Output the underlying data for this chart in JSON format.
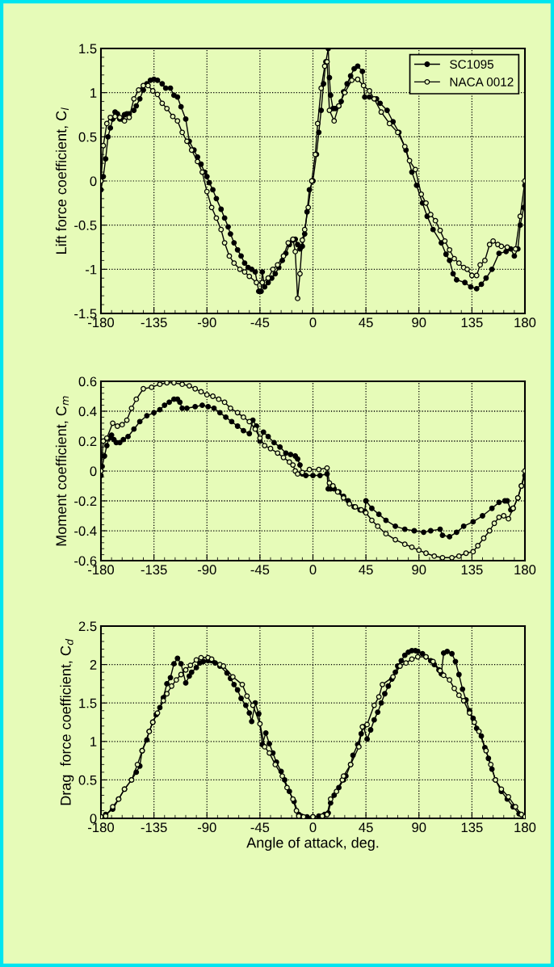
{
  "chart_data": [
    {
      "type": "line",
      "ylabel": "Lift force coefficient, C$_{l}$",
      "xlim": [
        -180,
        180
      ],
      "xticks": [
        -180,
        -135,
        -90,
        -45,
        0,
        45,
        90,
        135,
        180
      ],
      "ylim": [
        -1.5,
        1.5
      ],
      "yticks": [
        -1.5,
        -1,
        -0.5,
        0,
        0.5,
        1,
        1.5
      ],
      "grid": true,
      "legend": "top right",
      "marker": "circle",
      "line_style": "solid",
      "series": [
        {
          "name": "SC1095",
          "color": "#000000",
          "x": [
            -180,
            -178,
            -176,
            -174,
            -172,
            -170,
            -168,
            -166,
            -164,
            -162,
            -160,
            -158,
            -156,
            -152,
            -150,
            -147,
            -144,
            -141,
            -138,
            -135,
            -132,
            -128,
            -125,
            -121,
            -118,
            -115,
            -112,
            -108,
            -105,
            -101,
            -98,
            -95,
            -92,
            -90,
            -88,
            -85,
            -82,
            -78,
            -75,
            -72,
            -70,
            -67,
            -64,
            -61,
            -58,
            -55,
            -52,
            -49,
            -46,
            -44,
            -43,
            -41,
            -38,
            -35,
            -32,
            -29,
            -26,
            -23,
            -20,
            -17,
            -15,
            -13,
            -11,
            -9,
            -7,
            -5,
            -3,
            0,
            3,
            5,
            7,
            9,
            11,
            13,
            14,
            15,
            17,
            19,
            22,
            24,
            26,
            29,
            32,
            35,
            38,
            42,
            44,
            48,
            54,
            57,
            63,
            68,
            73,
            79,
            84,
            88,
            93,
            97,
            102,
            109,
            113,
            116,
            119,
            122,
            129,
            134,
            139,
            143,
            147,
            152,
            158,
            164,
            168,
            171,
            174,
            176,
            179,
            180
          ],
          "values": [
            -0.1,
            0.05,
            0.25,
            0.5,
            0.6,
            0.7,
            0.78,
            0.76,
            0.7,
            0.7,
            0.75,
            0.76,
            0.76,
            0.8,
            0.85,
            0.93,
            1.03,
            1.1,
            1.14,
            1.15,
            1.14,
            1.1,
            1.05,
            1.05,
            0.97,
            0.95,
            0.84,
            0.7,
            0.45,
            0.35,
            0.27,
            0.19,
            0.1,
            0.05,
            -0.02,
            -0.1,
            -0.2,
            -0.32,
            -0.42,
            -0.52,
            -0.6,
            -0.7,
            -0.78,
            -0.85,
            -0.93,
            -0.98,
            -1.0,
            -1.03,
            -1.25,
            -1.25,
            -1.03,
            -1.2,
            -1.15,
            -1.1,
            -1.05,
            -0.98,
            -0.9,
            -0.82,
            -0.72,
            -0.67,
            -0.66,
            -0.72,
            -0.77,
            -0.74,
            -0.6,
            -0.35,
            -0.1,
            0.0,
            0.3,
            0.55,
            0.8,
            1.1,
            1.35,
            1.5,
            1.17,
            0.97,
            0.82,
            0.82,
            0.85,
            0.9,
            1.01,
            1.1,
            1.19,
            1.27,
            1.3,
            1.24,
            0.95,
            0.95,
            0.93,
            0.88,
            0.8,
            0.67,
            0.55,
            0.35,
            0.1,
            -0.05,
            -0.25,
            -0.4,
            -0.55,
            -0.7,
            -0.83,
            -0.9,
            -1.05,
            -1.12,
            -1.15,
            -1.2,
            -1.22,
            -1.17,
            -1.1,
            -1.0,
            -0.82,
            -0.8,
            -0.77,
            -0.85,
            -0.77,
            -0.5,
            -0.3,
            -0.05
          ]
        },
        {
          "name": "NACA 0012",
          "color": "#000000",
          "x": [
            -180,
            -178,
            -175,
            -172,
            -168,
            -164,
            -160,
            -156,
            -152,
            -148,
            -144,
            -140,
            -136,
            -132,
            -128,
            -124,
            -119,
            -115,
            -111,
            -107,
            -103,
            -98,
            -94,
            -90,
            -86,
            -82,
            -78,
            -75,
            -71,
            -67,
            -62,
            -58,
            -54,
            -48,
            -43,
            -38,
            -34,
            -30,
            -25,
            -21,
            -17,
            -15,
            -13,
            -11,
            -9,
            -7,
            -4,
            -1,
            2,
            4,
            7,
            10,
            12,
            14,
            18,
            22,
            27,
            33,
            38,
            43,
            48,
            52,
            58,
            65,
            72,
            78,
            82,
            87,
            92,
            96,
            100,
            104,
            108,
            112,
            116,
            120,
            124,
            128,
            131,
            135,
            139,
            142,
            146,
            150,
            153,
            157,
            160,
            165,
            172,
            176,
            180
          ],
          "values": [
            0.0,
            0.4,
            0.65,
            0.72,
            0.73,
            0.72,
            0.68,
            0.72,
            0.93,
            1.03,
            1.08,
            1.08,
            1.02,
            0.98,
            0.88,
            0.82,
            0.73,
            0.68,
            0.55,
            0.45,
            0.35,
            0.22,
            0.1,
            -0.12,
            -0.3,
            -0.42,
            -0.55,
            -0.7,
            -0.85,
            -0.93,
            -1.0,
            -1.03,
            -1.08,
            -1.15,
            -1.15,
            -1.1,
            -1.0,
            -0.95,
            -0.85,
            -0.7,
            -0.66,
            -0.8,
            -1.33,
            -1.05,
            -0.67,
            -0.55,
            -0.3,
            0.0,
            0.3,
            0.65,
            1.05,
            1.3,
            1.35,
            0.8,
            0.68,
            0.85,
            1.0,
            1.14,
            1.15,
            1.08,
            1.02,
            0.93,
            0.78,
            0.65,
            0.55,
            0.39,
            0.23,
            0.13,
            -0.15,
            -0.25,
            -0.38,
            -0.45,
            -0.56,
            -0.68,
            -0.78,
            -0.88,
            -0.93,
            -0.98,
            -1.0,
            -1.07,
            -1.07,
            -0.95,
            -0.9,
            -0.72,
            -0.68,
            -0.72,
            -0.74,
            -0.75,
            -0.77,
            -0.4,
            0.0
          ]
        }
      ]
    },
    {
      "type": "line",
      "ylabel": "Moment coefficient, C$_{m}$",
      "xlim": [
        -180,
        180
      ],
      "xticks": [
        -180,
        -135,
        -90,
        -45,
        0,
        45,
        90,
        135,
        180
      ],
      "ylim": [
        -0.6,
        0.6
      ],
      "yticks": [
        -0.6,
        -0.4,
        -0.2,
        0,
        0.2,
        0.4,
        0.6
      ],
      "grid": true,
      "marker": "circle",
      "line_style": "solid",
      "series": [
        {
          "color": "#000000",
          "x": [
            -180,
            -179,
            -177,
            -175,
            -173,
            -171,
            -169,
            -167,
            -164,
            -161,
            -157,
            -152,
            -147,
            -141,
            -135,
            -130,
            -126,
            -122,
            -118,
            -115,
            -113,
            -111,
            -107,
            -100,
            -94,
            -89,
            -84,
            -79,
            -74,
            -69,
            -64,
            -59,
            -54,
            -51,
            -48,
            -45,
            -42,
            -38,
            -33,
            -28,
            -23,
            -19,
            -15,
            -13,
            -11,
            -9,
            -6,
            0,
            6,
            12,
            13,
            15,
            18,
            22,
            26,
            30,
            35,
            40,
            44,
            45,
            50,
            56,
            62,
            70,
            78,
            86,
            94,
            100,
            108,
            110,
            116,
            122,
            128,
            136,
            144,
            152,
            158,
            163,
            165,
            168,
            170,
            174,
            177,
            180
          ],
          "values": [
            -0.03,
            0.03,
            0.1,
            0.17,
            0.22,
            0.24,
            0.21,
            0.19,
            0.19,
            0.21,
            0.23,
            0.28,
            0.33,
            0.37,
            0.39,
            0.41,
            0.44,
            0.46,
            0.48,
            0.48,
            0.46,
            0.42,
            0.42,
            0.43,
            0.44,
            0.43,
            0.42,
            0.39,
            0.36,
            0.33,
            0.3,
            0.27,
            0.25,
            0.34,
            0.3,
            0.2,
            0.26,
            0.23,
            0.19,
            0.16,
            0.12,
            0.11,
            0.1,
            0.08,
            0.04,
            -0.02,
            -0.03,
            -0.03,
            -0.03,
            -0.02,
            -0.12,
            -0.12,
            -0.12,
            -0.14,
            -0.17,
            -0.2,
            -0.24,
            -0.26,
            -0.27,
            -0.2,
            -0.25,
            -0.29,
            -0.33,
            -0.37,
            -0.39,
            -0.4,
            -0.41,
            -0.4,
            -0.39,
            -0.43,
            -0.44,
            -0.41,
            -0.37,
            -0.34,
            -0.3,
            -0.25,
            -0.21,
            -0.2,
            -0.2,
            -0.26,
            -0.25,
            -0.18,
            -0.1,
            -0.03
          ]
        },
        {
          "color": "#000000",
          "x": [
            -180,
            -178,
            -175,
            -170,
            -166,
            -162,
            -158,
            -154,
            -150,
            -144,
            -137,
            -130,
            -124,
            -118,
            -111,
            -105,
            -100,
            -95,
            -90,
            -85,
            -80,
            -75,
            -70,
            -64,
            -59,
            -54,
            -49,
            -45,
            -41,
            -36,
            -30,
            -25,
            -20,
            -17,
            -15,
            -13,
            -9,
            -3,
            5,
            12,
            14,
            17,
            21,
            26,
            31,
            36,
            41,
            45,
            50,
            55,
            62,
            70,
            78,
            84,
            90,
            96,
            103,
            110,
            118,
            124,
            130,
            136,
            140,
            145,
            150,
            154,
            158,
            162,
            166,
            170,
            174,
            177,
            180
          ],
          "values": [
            0.0,
            0.2,
            0.22,
            0.32,
            0.3,
            0.31,
            0.34,
            0.42,
            0.48,
            0.55,
            0.56,
            0.58,
            0.59,
            0.59,
            0.58,
            0.57,
            0.55,
            0.53,
            0.51,
            0.5,
            0.48,
            0.46,
            0.42,
            0.39,
            0.36,
            0.33,
            0.28,
            0.22,
            0.17,
            0.15,
            0.12,
            0.09,
            0.06,
            0.04,
            0.0,
            -0.02,
            -0.01,
            0.01,
            0.01,
            0.02,
            -0.08,
            -0.1,
            -0.14,
            -0.18,
            -0.22,
            -0.24,
            -0.26,
            -0.28,
            -0.33,
            -0.37,
            -0.42,
            -0.46,
            -0.49,
            -0.51,
            -0.53,
            -0.55,
            -0.57,
            -0.58,
            -0.58,
            -0.57,
            -0.55,
            -0.54,
            -0.5,
            -0.45,
            -0.4,
            -0.35,
            -0.31,
            -0.3,
            -0.32,
            -0.25,
            -0.18,
            -0.1,
            0.0
          ]
        }
      ]
    },
    {
      "type": "line",
      "ylabel": "Drag  force coefficient, C$_{d}$",
      "xlabel": "Angle of attack, deg.",
      "xlim": [
        -180,
        180
      ],
      "xticks": [
        -180,
        -135,
        -90,
        -45,
        0,
        45,
        90,
        135,
        180
      ],
      "ylim": [
        0,
        2.5
      ],
      "yticks": [
        0,
        0.5,
        1,
        1.5,
        2,
        2.5
      ],
      "grid": true,
      "marker": "circle",
      "line_style": "solid",
      "series": [
        {
          "color": "#000000",
          "x": [
            -180,
            -176,
            -170,
            -165,
            -160,
            -154,
            -150,
            -147,
            -145,
            -141,
            -139,
            -136,
            -133,
            -130,
            -127,
            -124,
            -121,
            -118,
            -115,
            -112,
            -108,
            -105,
            -103,
            -99,
            -96,
            -93,
            -89,
            -86,
            -83,
            -79,
            -73,
            -70,
            -67,
            -64,
            -61,
            -57,
            -54,
            -52,
            -49,
            -46,
            -43,
            -40,
            -37,
            -34,
            -31,
            -27,
            -24,
            -20,
            -16,
            -12,
            -10,
            -5,
            0,
            5,
            10,
            13,
            15,
            18,
            22,
            26,
            28,
            32,
            34,
            38,
            41,
            43,
            46,
            49,
            52,
            55,
            58,
            61,
            64,
            67,
            70,
            72,
            75,
            78,
            81,
            84,
            87,
            89,
            93,
            96,
            100,
            103,
            107,
            109,
            111,
            114,
            118,
            121,
            124,
            127,
            130,
            133,
            136,
            139,
            143,
            146,
            149,
            152,
            155,
            160,
            165,
            170,
            175,
            180
          ],
          "values": [
            0.02,
            0.05,
            0.12,
            0.25,
            0.38,
            0.5,
            0.6,
            0.68,
            0.88,
            1.02,
            1.13,
            1.25,
            1.35,
            1.44,
            1.57,
            1.75,
            1.83,
            2.01,
            2.08,
            2.01,
            1.76,
            1.85,
            1.9,
            1.96,
            2.02,
            2.04,
            2.05,
            2.05,
            2.02,
            1.98,
            1.89,
            1.82,
            1.74,
            1.67,
            1.56,
            1.47,
            1.37,
            1.26,
            1.5,
            1.36,
            0.96,
            1.11,
            0.97,
            0.85,
            0.73,
            0.61,
            0.5,
            0.35,
            0.22,
            0.05,
            0.03,
            0.02,
            0.02,
            0.03,
            0.05,
            0.07,
            0.2,
            0.3,
            0.4,
            0.5,
            0.55,
            0.7,
            0.82,
            0.96,
            1.1,
            1.19,
            1.03,
            1.15,
            1.28,
            1.38,
            1.5,
            1.62,
            1.72,
            1.81,
            1.9,
            1.98,
            2.05,
            2.12,
            2.16,
            2.18,
            2.18,
            2.17,
            2.14,
            2.1,
            2.05,
            2.0,
            1.93,
            1.88,
            2.15,
            2.17,
            2.14,
            2.04,
            1.87,
            1.68,
            1.54,
            1.4,
            1.3,
            1.17,
            1.07,
            0.92,
            0.78,
            0.64,
            0.5,
            0.35,
            0.25,
            0.15,
            0.06,
            0.02
          ]
        },
        {
          "color": "#000000",
          "x": [
            -180,
            -176,
            -170,
            -165,
            -160,
            -154,
            -149,
            -145,
            -139,
            -136,
            -132,
            -127,
            -124,
            -120,
            -116,
            -112,
            -108,
            -104,
            -99,
            -95,
            -89,
            -86,
            -79,
            -76,
            -68,
            -60,
            -56,
            -51,
            -45,
            -41,
            -37,
            -32,
            -26,
            -22,
            -17,
            -14,
            -12,
            -8,
            0,
            8,
            12,
            15,
            20,
            25,
            26,
            32,
            39,
            42,
            46,
            52,
            56,
            59,
            68,
            74,
            79,
            84,
            89,
            96,
            102,
            108,
            111,
            116,
            120,
            124,
            128,
            133,
            137,
            141,
            147,
            151,
            155,
            160,
            166,
            172,
            177,
            180
          ],
          "values": [
            0.02,
            0.03,
            0.15,
            0.25,
            0.38,
            0.5,
            0.7,
            0.88,
            1.13,
            1.25,
            1.37,
            1.53,
            1.62,
            1.72,
            1.8,
            1.87,
            1.93,
            1.99,
            2.06,
            2.09,
            2.09,
            2.07,
            2.0,
            1.98,
            1.84,
            1.74,
            1.59,
            1.47,
            1.23,
            0.93,
            0.85,
            0.7,
            0.55,
            0.4,
            0.25,
            0.1,
            0.03,
            0.02,
            0.02,
            0.03,
            0.05,
            0.25,
            0.35,
            0.5,
            0.55,
            0.7,
            0.93,
            1.19,
            1.22,
            1.47,
            1.58,
            1.74,
            1.84,
            1.98,
            2.02,
            2.07,
            2.1,
            2.1,
            2.04,
            1.92,
            1.86,
            1.8,
            1.69,
            1.6,
            1.53,
            1.37,
            1.25,
            1.13,
            0.88,
            0.7,
            0.5,
            0.38,
            0.28,
            0.15,
            0.05,
            0.02
          ]
        }
      ]
    }
  ]
}
